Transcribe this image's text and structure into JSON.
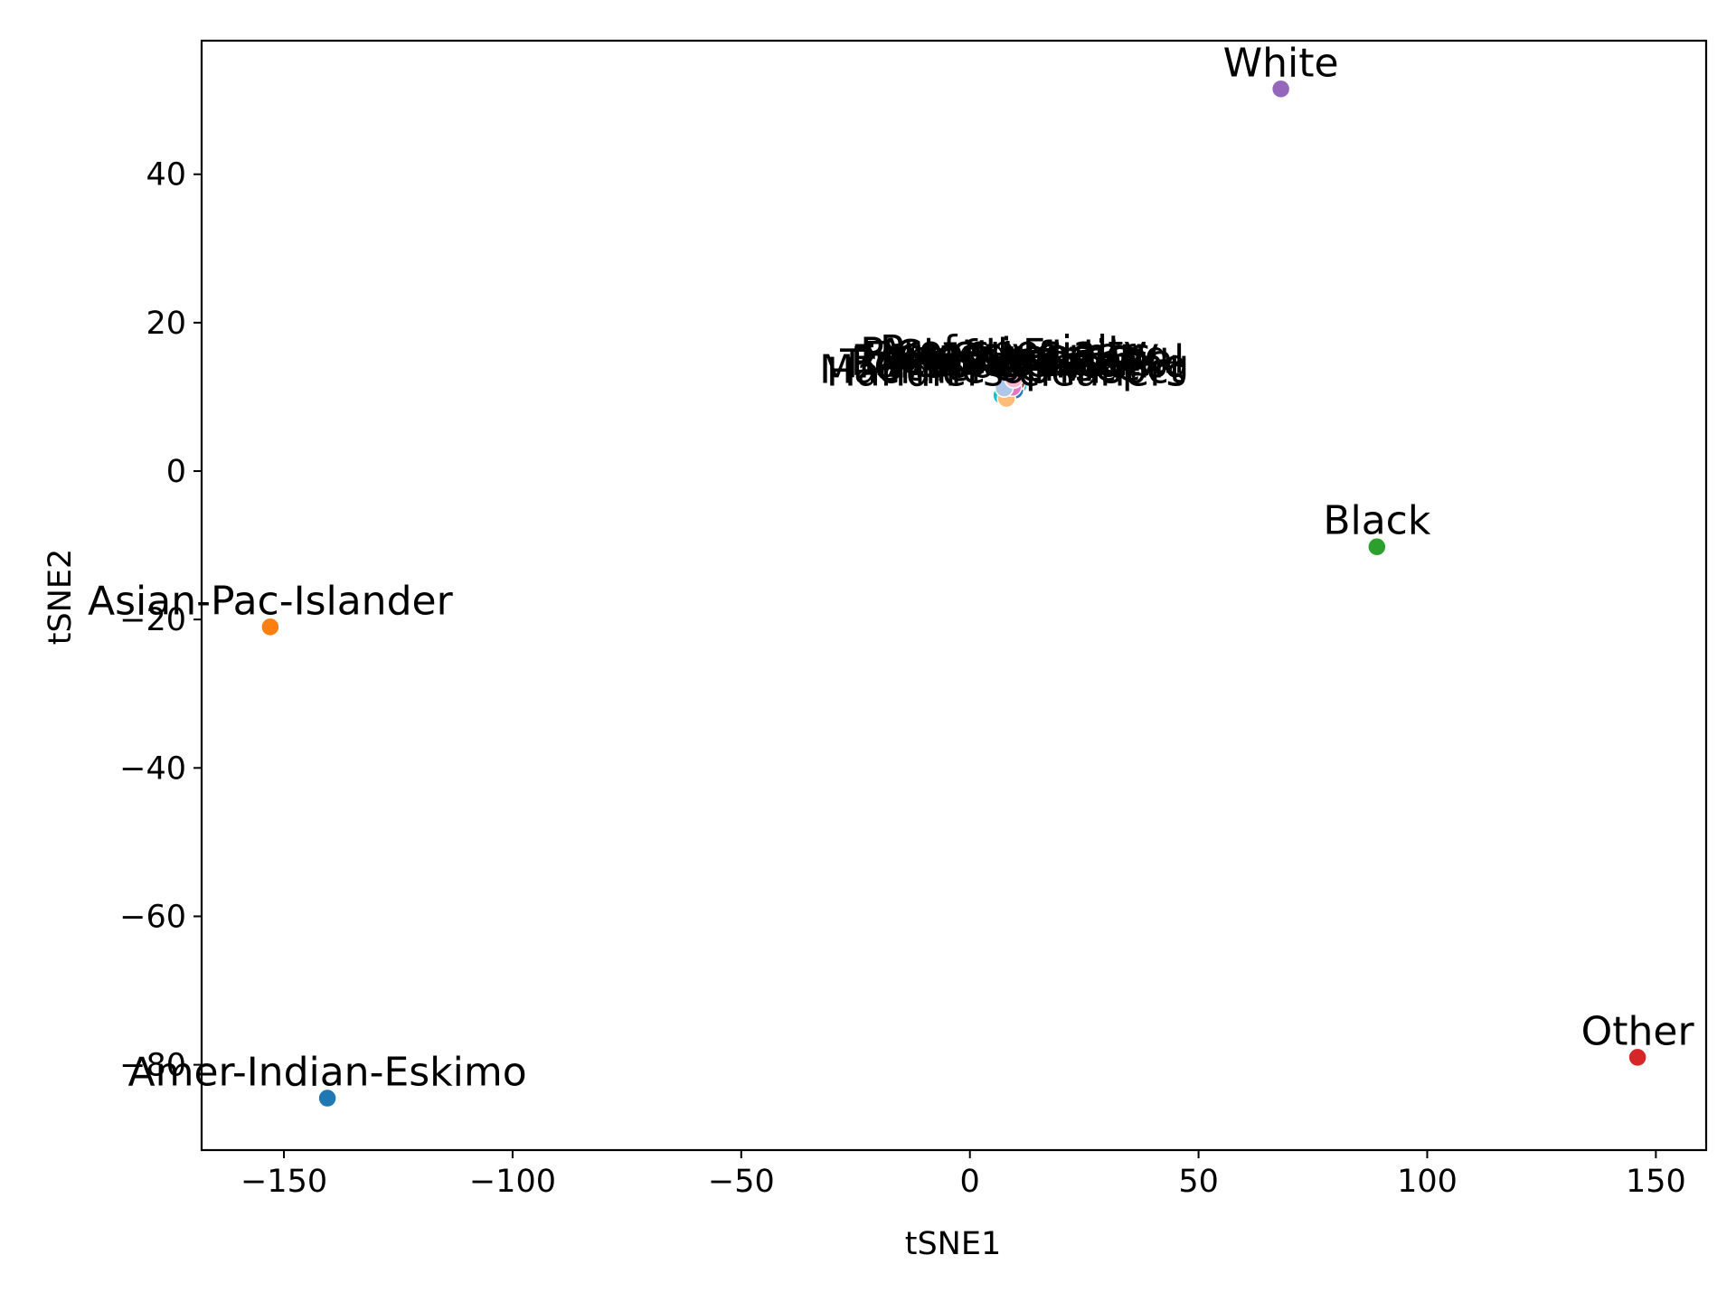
{
  "chart_data": {
    "type": "scatter",
    "title": "",
    "xlabel": "tSNE1",
    "ylabel": "tSNE2",
    "xlim": [
      -168,
      161
    ],
    "ylim": [
      -91.5,
      58
    ],
    "xticks": [
      -150,
      -100,
      -50,
      0,
      50,
      100,
      150
    ],
    "yticks": [
      -80,
      -60,
      -40,
      -20,
      0,
      20,
      40
    ],
    "grid": false,
    "legend": "none",
    "points": [
      {
        "label": "White",
        "x": 68,
        "y": 51.5,
        "color": "#9467bd"
      },
      {
        "label": "Black",
        "x": 89,
        "y": -10.2,
        "color": "#2ca02c"
      },
      {
        "label": "Asian-Pac-Islander",
        "x": -153,
        "y": -21,
        "color": "#ff7f0e"
      },
      {
        "label": "Amer-Indian-Eskimo",
        "x": -140.5,
        "y": -84.5,
        "color": "#1f77b4"
      },
      {
        "label": "Other",
        "x": 146,
        "y": -79,
        "color": "#d62728"
      },
      {
        "label": "Prof-specialty",
        "x": 9.5,
        "y": 12.8,
        "color": "#9467bd"
      },
      {
        "label": "Craft-repair",
        "x": 8.5,
        "y": 12.2,
        "color": "#e377c2"
      },
      {
        "label": "Exec-managerial",
        "x": 10.5,
        "y": 11.5,
        "color": "#17becf"
      },
      {
        "label": "Adm-clerical",
        "x": 9.0,
        "y": 11.0,
        "color": "#ff7f0e"
      },
      {
        "label": "Sales",
        "x": 7.8,
        "y": 11.8,
        "color": "#2ca02c"
      },
      {
        "label": "Other-service",
        "x": 8.2,
        "y": 10.5,
        "color": "#bcbd22"
      },
      {
        "label": "Machine-op-inspct",
        "x": 7.0,
        "y": 10.2,
        "color": "#17becf"
      },
      {
        "label": "Transport-moving",
        "x": 9.8,
        "y": 10.9,
        "color": "#1f77b4"
      },
      {
        "label": "Handlers-cleaners",
        "x": 8.0,
        "y": 9.8,
        "color": "#ffbb78"
      },
      {
        "label": "Farming-fishing",
        "x": 10.2,
        "y": 12.0,
        "color": "#8c564b"
      },
      {
        "label": "Tech-support",
        "x": 9.3,
        "y": 11.3,
        "color": "#e377c2"
      },
      {
        "label": "Protective-serv",
        "x": 8.7,
        "y": 12.5,
        "color": "#7f7f7f"
      },
      {
        "label": "Priv-house-serv",
        "x": 7.5,
        "y": 11.2,
        "color": "#aec7e8"
      },
      {
        "label": "Armed-Forces",
        "x": 9.6,
        "y": 12.4,
        "color": "#f7b6d2"
      }
    ]
  }
}
